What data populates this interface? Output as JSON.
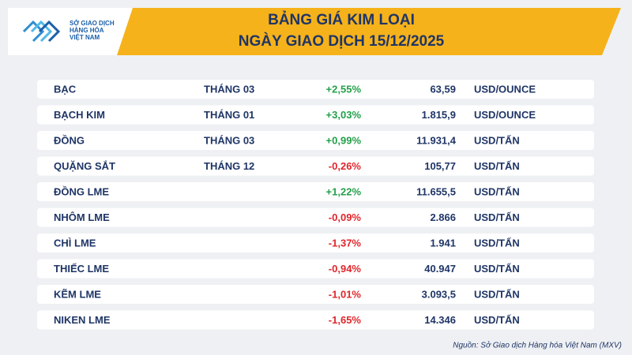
{
  "header": {
    "logo": [
      "SỞ GIAO DỊCH",
      "HÀNG HÓA",
      "VIỆT NAM"
    ],
    "title": [
      "BẢNG GIÁ KIM LOẠI",
      "NGÀY GIAO DỊCH 15/12/2025"
    ]
  },
  "table": {
    "rows": [
      [
        "BẠC",
        "THÁNG 03",
        "+2,55%",
        "63,59",
        "USD/OUNCE"
      ],
      [
        "BẠCH KIM",
        "THÁNG 01",
        "+3,03%",
        "1.815,9",
        "USD/OUNCE"
      ],
      [
        "ĐỒNG",
        "THÁNG 03",
        "+0,99%",
        "11.931,4",
        "USD/TẤN"
      ],
      [
        "QUẶNG SẮT",
        "THÁNG 12",
        "-0,26%",
        "105,77",
        "USD/TẤN"
      ],
      [
        "ĐỒNG LME",
        null,
        "+1,22%",
        "11.655,5",
        "USD/TẤN"
      ],
      [
        "NHÔM LME",
        null,
        "-0,09%",
        "2.866",
        "USD/TẤN"
      ],
      [
        "CHÌ LME",
        null,
        "-1,37%",
        "1.941",
        "USD/TẤN"
      ],
      [
        "THIẾC LME",
        null,
        "-0,94%",
        "40.947",
        "USD/TẤN"
      ],
      [
        "KẼM LME",
        null,
        "-1,01%",
        "3.093,5",
        "USD/TẤN"
      ],
      [
        "NIKEN LME",
        null,
        "-1,65%",
        "14.346",
        "USD/TẤN"
      ]
    ]
  },
  "source": "Nguồn: Sở Giao dịch Hàng hóa Việt Nam (MXV)"
}
